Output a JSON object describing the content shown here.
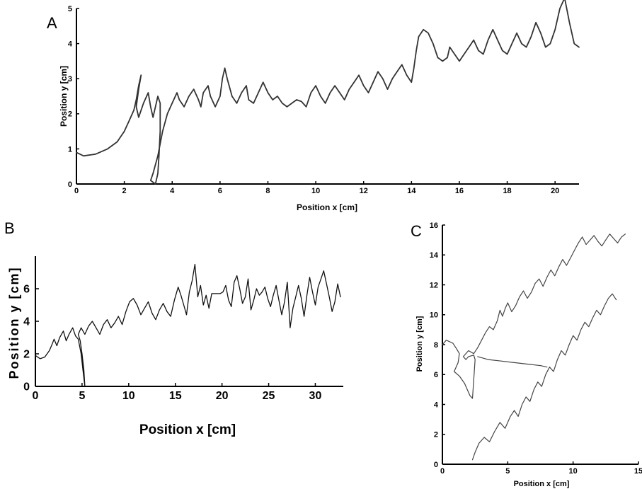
{
  "chart_data": [
    {
      "panel_label": "A",
      "type": "line",
      "xlabel": "Position x [cm]",
      "ylabel": "Position y [cm]",
      "xlim": [
        0,
        21
      ],
      "ylim": [
        0,
        5
      ],
      "xticks": [
        0,
        2,
        4,
        6,
        8,
        10,
        12,
        14,
        16,
        18,
        20
      ],
      "yticks": [
        0,
        1,
        2,
        3,
        4,
        5
      ],
      "grid": false,
      "color": "#333333",
      "series": [
        {
          "x": [
            0,
            0.3,
            0.8,
            1.3,
            1.7,
            2.0,
            2.2,
            2.4,
            2.5,
            2.6,
            2.7,
            2.6,
            2.5,
            2.6,
            2.8,
            3.0,
            3.1,
            3.2,
            3.3,
            3.4,
            3.5,
            3.5,
            3.45,
            3.4,
            3.3,
            3.1,
            3.2,
            3.4,
            3.6,
            3.8,
            4.0,
            4.2,
            4.3,
            4.5,
            4.7,
            4.9,
            5.1,
            5.2,
            5.3,
            5.5,
            5.6,
            5.8,
            6.0,
            6.1,
            6.2,
            6.3,
            6.5,
            6.7,
            6.9,
            7.1,
            7.2,
            7.4,
            7.6,
            7.8,
            8.0,
            8.2,
            8.4,
            8.6,
            8.8,
            9.0,
            9.2,
            9.4,
            9.6,
            9.8,
            10.0,
            10.2,
            10.4,
            10.6,
            10.8,
            11.0,
            11.2,
            11.4,
            11.6,
            11.8,
            12.0,
            12.2,
            12.4,
            12.6,
            12.8,
            13.0,
            13.2,
            13.4,
            13.6,
            13.8,
            14.0,
            14.1,
            14.2,
            14.3,
            14.5,
            14.7,
            14.9,
            15.1,
            15.3,
            15.5,
            15.6,
            15.8,
            16.0,
            16.2,
            16.4,
            16.6,
            16.8,
            17.0,
            17.2,
            17.4,
            17.6,
            17.8,
            18.0,
            18.2,
            18.4,
            18.6,
            18.8,
            19.0,
            19.2,
            19.4,
            19.6,
            19.8,
            20.0,
            20.2,
            20.4,
            20.6,
            20.8,
            21.0
          ],
          "y": [
            0.9,
            0.8,
            0.85,
            1.0,
            1.2,
            1.5,
            1.8,
            2.1,
            2.4,
            2.8,
            3.1,
            2.7,
            2.2,
            1.9,
            2.3,
            2.6,
            2.2,
            1.9,
            2.2,
            2.5,
            2.3,
            1.5,
            0.8,
            0.3,
            0.0,
            0.1,
            0.3,
            0.8,
            1.5,
            2.0,
            2.3,
            2.6,
            2.4,
            2.2,
            2.5,
            2.7,
            2.4,
            2.2,
            2.6,
            2.8,
            2.5,
            2.2,
            2.5,
            3.0,
            3.3,
            3.0,
            2.5,
            2.3,
            2.6,
            2.8,
            2.4,
            2.3,
            2.6,
            2.9,
            2.6,
            2.4,
            2.5,
            2.3,
            2.2,
            2.3,
            2.4,
            2.35,
            2.2,
            2.6,
            2.8,
            2.5,
            2.3,
            2.6,
            2.8,
            2.6,
            2.4,
            2.7,
            2.9,
            3.1,
            2.8,
            2.6,
            2.9,
            3.2,
            3.0,
            2.7,
            3.0,
            3.2,
            3.4,
            3.1,
            2.9,
            3.3,
            3.8,
            4.2,
            4.4,
            4.3,
            4.0,
            3.6,
            3.5,
            3.6,
            3.9,
            3.7,
            3.5,
            3.7,
            3.9,
            4.1,
            3.8,
            3.7,
            4.1,
            4.4,
            4.1,
            3.8,
            3.7,
            4.0,
            4.3,
            4.0,
            3.9,
            4.2,
            4.6,
            4.3,
            3.9,
            4.0,
            4.4,
            5.0,
            5.3,
            4.6,
            4.0,
            3.9
          ]
        }
      ]
    },
    {
      "panel_label": "B",
      "type": "line",
      "xlabel": "Position x [cm]",
      "ylabel": "Position y [cm]",
      "xlim": [
        0,
        33
      ],
      "ylim": [
        0,
        8
      ],
      "xticks": [
        0,
        5,
        10,
        15,
        20,
        25,
        30
      ],
      "yticks": [
        0,
        2,
        4,
        6
      ],
      "grid": false,
      "color": "#111111",
      "series": [
        {
          "x": [
            0,
            0.5,
            1.0,
            1.5,
            1.8,
            2.0,
            2.3,
            2.6,
            3.0,
            3.3,
            3.6,
            4.0,
            4.3,
            4.6,
            4.9,
            5.1,
            5.3,
            5.2,
            5.0,
            4.8,
            4.6,
            4.9,
            5.3,
            5.7,
            6.1,
            6.5,
            6.9,
            7.3,
            7.7,
            8.1,
            8.5,
            8.9,
            9.3,
            9.7,
            10.1,
            10.5,
            10.9,
            11.3,
            11.7,
            12.1,
            12.5,
            12.9,
            13.3,
            13.7,
            14.1,
            14.5,
            14.9,
            15.3,
            15.6,
            15.9,
            16.2,
            16.5,
            16.8,
            17.1,
            17.4,
            17.7,
            18.0,
            18.3,
            18.6,
            18.9,
            19.2,
            19.5,
            19.8,
            20.1,
            20.4,
            20.7,
            21.0,
            21.3,
            21.6,
            21.9,
            22.2,
            22.5,
            22.8,
            23.1,
            23.4,
            23.7,
            24.0,
            24.3,
            24.6,
            24.9,
            25.2,
            25.5,
            25.8,
            26.1,
            26.4,
            26.7,
            27.0,
            27.3,
            27.6,
            27.9,
            28.2,
            28.5,
            28.8,
            29.1,
            29.4,
            29.7,
            30.0,
            30.3,
            30.6,
            30.9,
            31.2,
            31.5,
            31.8,
            32.1,
            32.4,
            32.7
          ],
          "y": [
            1.9,
            1.7,
            1.8,
            2.2,
            2.6,
            2.9,
            2.5,
            3.0,
            3.4,
            2.8,
            3.2,
            3.6,
            3.1,
            2.9,
            2.0,
            1.0,
            0.0,
            1.0,
            2.0,
            2.8,
            3.2,
            3.6,
            3.2,
            3.7,
            4.0,
            3.6,
            3.2,
            3.8,
            4.1,
            3.6,
            3.9,
            4.3,
            3.8,
            4.6,
            5.2,
            5.4,
            5.0,
            4.4,
            4.8,
            5.2,
            4.5,
            4.1,
            4.7,
            5.1,
            4.6,
            4.3,
            5.3,
            6.1,
            5.6,
            5.0,
            4.4,
            5.8,
            6.5,
            7.5,
            5.5,
            6.2,
            5.0,
            5.6,
            4.8,
            5.7,
            5.7,
            5.7,
            5.7,
            5.8,
            6.2,
            5.3,
            4.9,
            6.4,
            6.8,
            6.0,
            5.1,
            5.5,
            6.6,
            4.7,
            5.3,
            6.0,
            5.6,
            5.8,
            6.1,
            5.4,
            4.9,
            5.6,
            6.2,
            5.3,
            4.4,
            5.2,
            6.4,
            3.6,
            4.8,
            5.5,
            6.2,
            5.4,
            4.3,
            5.6,
            6.7,
            5.8,
            5.0,
            6.1,
            6.6,
            7.1,
            6.3,
            5.5,
            4.6,
            5.2,
            6.3,
            5.5
          ]
        }
      ]
    },
    {
      "panel_label": "C",
      "type": "line",
      "xlabel": "Position x [cm]",
      "ylabel": "Position y [cm]",
      "xlim": [
        0,
        15
      ],
      "ylim": [
        0,
        16
      ],
      "xticks": [
        0,
        5,
        10,
        15
      ],
      "yticks": [
        0,
        2,
        4,
        6,
        8,
        10,
        12,
        14,
        16
      ],
      "grid": false,
      "color": "#444444",
      "series": [
        {
          "x": [
            0.0,
            0.3,
            0.8,
            1.1,
            1.3,
            1.2,
            0.9,
            1.3,
            1.7,
            1.9,
            2.1,
            2.3,
            2.5,
            2.4,
            2.0,
            1.8,
            1.6,
            2.0,
            2.4,
            2.7,
            3.0,
            3.3,
            3.6,
            3.9,
            4.2,
            4.4,
            4.6,
            4.8,
            5.0,
            5.3,
            5.6,
            5.9,
            6.2,
            6.5,
            6.8,
            7.1,
            7.4,
            7.7,
            8.0,
            8.3,
            8.6,
            8.9,
            9.2,
            9.5,
            9.8,
            10.1,
            10.4,
            10.7,
            11.0,
            11.3,
            11.6,
            11.9,
            12.2,
            12.5,
            12.8,
            13.1,
            13.4,
            13.7,
            14.0
          ],
          "y": [
            8.0,
            8.3,
            8.1,
            7.7,
            7.4,
            6.8,
            6.2,
            5.9,
            5.4,
            5.0,
            4.6,
            4.4,
            7.0,
            7.3,
            7.2,
            7.0,
            7.2,
            7.6,
            7.4,
            7.8,
            8.3,
            8.8,
            9.2,
            9.0,
            9.6,
            10.3,
            9.9,
            10.4,
            10.8,
            10.2,
            10.6,
            11.2,
            11.6,
            11.1,
            11.5,
            12.1,
            12.4,
            11.9,
            12.5,
            13.0,
            12.6,
            13.2,
            13.7,
            13.3,
            13.8,
            14.3,
            14.8,
            15.2,
            14.7,
            15.0,
            15.3,
            14.9,
            14.6,
            15.0,
            15.4,
            15.1,
            14.8,
            15.2,
            15.4
          ]
        },
        {
          "x": [
            2.7,
            3.5,
            4.5,
            5.5,
            6.5,
            7.5,
            8.0
          ],
          "y": [
            7.2,
            7.0,
            6.9,
            6.8,
            6.7,
            6.6,
            6.5
          ]
        },
        {
          "x": [
            2.3,
            2.5,
            2.8,
            3.2,
            3.6,
            4.0,
            4.4,
            4.8,
            5.2,
            5.5,
            5.8,
            6.1,
            6.4,
            6.7,
            7.0,
            7.3,
            7.6,
            7.9,
            8.2,
            8.5,
            8.8,
            9.1,
            9.4,
            9.7,
            10.0,
            10.3,
            10.6,
            10.9,
            11.2,
            11.5,
            11.8,
            12.1,
            12.4,
            12.7,
            13.0,
            13.3
          ],
          "y": [
            0.3,
            0.8,
            1.4,
            1.8,
            1.5,
            2.2,
            2.8,
            2.4,
            3.2,
            3.6,
            3.2,
            4.0,
            4.5,
            4.2,
            5.0,
            5.5,
            5.2,
            6.0,
            6.5,
            6.2,
            7.0,
            7.6,
            7.3,
            8.0,
            8.6,
            8.3,
            9.0,
            9.5,
            9.2,
            9.8,
            10.3,
            10.0,
            10.6,
            11.1,
            11.4,
            11.0
          ]
        }
      ]
    }
  ]
}
